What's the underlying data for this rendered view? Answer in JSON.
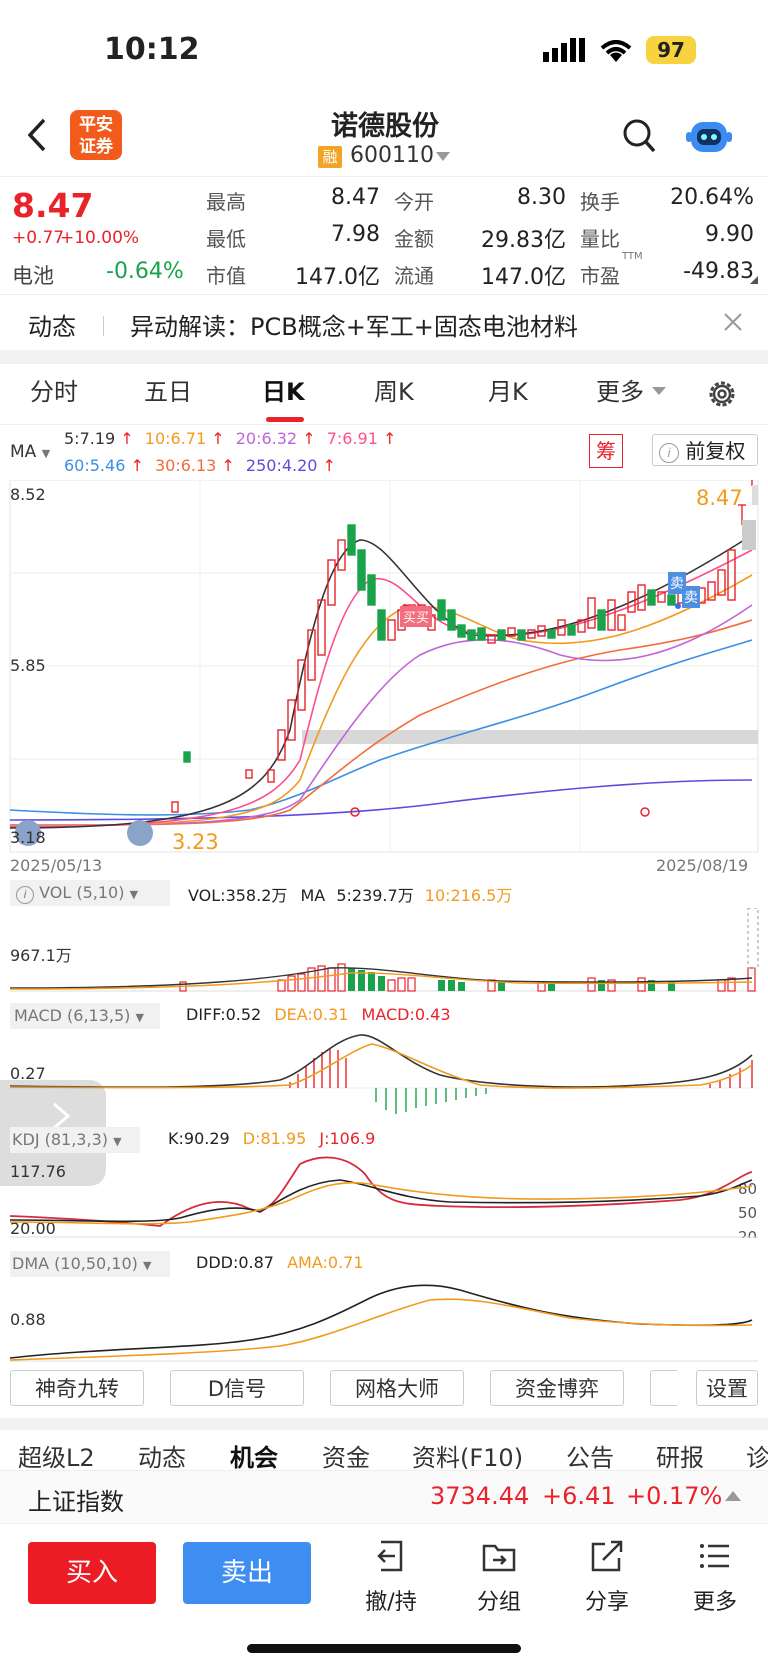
{
  "status_bar": {
    "time": "10:12",
    "battery": "97"
  },
  "header": {
    "broker_logo_line1": "平安",
    "broker_logo_line2": "证券",
    "stock_name": "诺德股份",
    "margin_badge": "融",
    "stock_code": "600110"
  },
  "quote": {
    "price": "8.47",
    "change": "+0.77",
    "change_pct": "+10.00%",
    "sector_name": "电池",
    "sector_pct": "-0.64%",
    "fields": [
      {
        "label": "最高",
        "value": "8.47",
        "color": "red"
      },
      {
        "label": "今开",
        "value": "8.30",
        "color": "red"
      },
      {
        "label": "换手",
        "value": "20.64%",
        "color": "black"
      },
      {
        "label": "最低",
        "value": "7.98",
        "color": "red"
      },
      {
        "label": "金额",
        "value": "29.83亿",
        "color": "black"
      },
      {
        "label": "量比",
        "value": "9.90",
        "color": "black"
      },
      {
        "label": "市值",
        "value": "147.0亿",
        "color": "black"
      },
      {
        "label": "流通",
        "value": "147.0亿",
        "color": "black"
      },
      {
        "label": "市盈",
        "value": "-49.83",
        "color": "black"
      }
    ],
    "ttm": "TTM"
  },
  "news": {
    "tag": "动态",
    "text": "异动解读：PCB概念+军工+固态电池材料"
  },
  "chart_tabs": [
    "分时",
    "五日",
    "日K",
    "周K",
    "月K",
    "更多"
  ],
  "active_tab": "日K",
  "ma_legend": {
    "label": "MA",
    "row1": [
      {
        "text": "5:7.19",
        "color": "#333333"
      },
      {
        "text": "10:6.71",
        "color": "#f39a1e"
      },
      {
        "text": "20:6.32",
        "color": "#c064d8"
      },
      {
        "text": "7:6.91",
        "color": "#ff4d8d"
      }
    ],
    "row2": [
      {
        "text": "60:5.46",
        "color": "#3a8ee6"
      },
      {
        "text": "30:6.13",
        "color": "#f26b3a"
      },
      {
        "text": "250:4.20",
        "color": "#5b4ce0"
      }
    ],
    "chip_btn": "筹",
    "adjust_btn": "前复权"
  },
  "kline": {
    "y_top": "8.52",
    "y_mid": "5.85",
    "y_bottom": "3.18",
    "max_label": "8.47",
    "min_label": "3.23",
    "date_start": "2025/05/13",
    "date_end": "2025/08/19",
    "buy_marker": "买买",
    "sell_marker_1": "卖",
    "sell_marker_2": "卖"
  },
  "vol": {
    "selector": "VOL (5,10)",
    "vol": "VOL:358.2万",
    "ma": "MA",
    "ma5": "5:239.7万",
    "ma10": "10:216.5万",
    "axis": "967.1万"
  },
  "macd": {
    "selector": "MACD (6,13,5)",
    "diff": "DIFF:0.52",
    "dea": "DEA:0.31",
    "macd": "MACD:0.43",
    "axis": "0.27"
  },
  "kdj": {
    "selector": "KDJ (81,3,3)",
    "k": "K:90.29",
    "d": "D:81.95",
    "j": "J:106.9",
    "axis_top": "117.76",
    "axis_bottom": "20.00",
    "r80": "80",
    "r50": "50",
    "r20": "20"
  },
  "dma": {
    "selector": "DMA (10,50,10)",
    "ddd": "DDD:0.87",
    "ama": "AMA:0.71",
    "axis": "0.88"
  },
  "indicator_buttons": [
    "神奇九转",
    "D信号",
    "网格大师",
    "资金博弈",
    "",
    "设置"
  ],
  "bottom_tabs": [
    "超级L2",
    "动态",
    "机会",
    "资金",
    "资料(F10)",
    "公告",
    "研报",
    "诊"
  ],
  "index_bar": {
    "name": "上证指数",
    "value": "3734.44",
    "change": "+6.41",
    "pct": "+0.17%"
  },
  "actions": {
    "buy": "买入",
    "sell": "卖出",
    "tools": [
      "撤/持",
      "分组",
      "分享",
      "更多"
    ]
  }
}
